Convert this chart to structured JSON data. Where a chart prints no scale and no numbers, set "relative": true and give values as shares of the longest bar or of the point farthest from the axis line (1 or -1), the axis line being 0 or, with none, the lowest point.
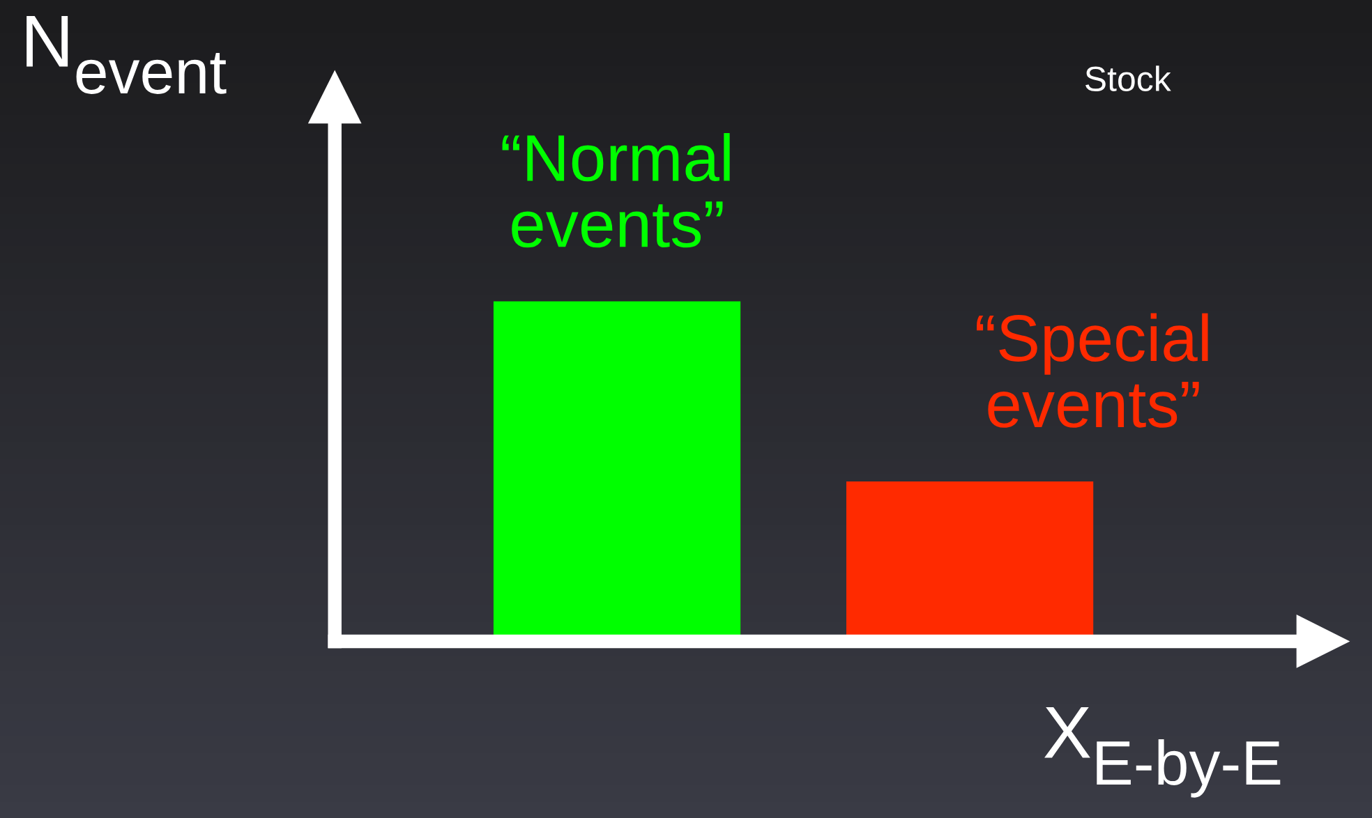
{
  "chart_data": {
    "type": "bar",
    "relative": true,
    "categories": [
      null,
      null
    ],
    "xlabel": "X$_{E-by-E}$",
    "ylabel": "N$_{event}$",
    "values": [
      1,
      0.47
    ],
    "colors": [
      "#00ff00",
      "#ff2a00"
    ],
    "annotations": [
      "“Normal events”",
      "“Special events”",
      "Stock"
    ],
    "grid": false
  }
}
